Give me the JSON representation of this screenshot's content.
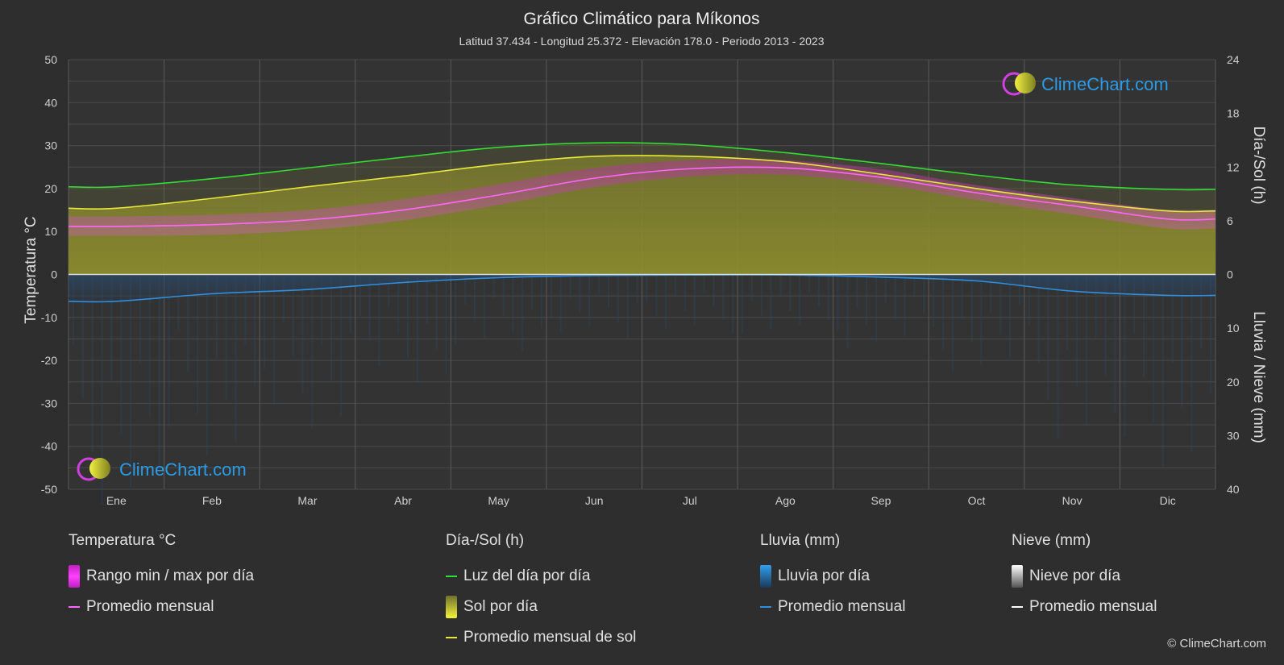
{
  "chart_data": {
    "type": "area",
    "title": "Gráfico Climático para Míkonos",
    "subtitle": "Latitud 37.434 - Longitud 25.372 - Elevación 178.0 - Periodo 2013 - 2023",
    "y_left_label": "Temperatura °C",
    "y_right_top_label": "Día-/Sol (h)",
    "y_right_bottom_label": "Lluvia / Nieve (mm)",
    "y_left_ticks": [
      "50",
      "40",
      "30",
      "20",
      "10",
      "0",
      "-10",
      "-20",
      "-30",
      "-40",
      "-50"
    ],
    "y_right_top_ticks": [
      "24",
      "18",
      "12",
      "6",
      "0"
    ],
    "y_right_bottom_ticks": [
      "10",
      "20",
      "30",
      "40"
    ],
    "ylim_temperature": [
      -50,
      50
    ],
    "ylim_daylight_hours": [
      0,
      24
    ],
    "ylim_precipitation_mm": [
      0,
      40
    ],
    "categories": [
      "Ene",
      "Feb",
      "Mar",
      "Abr",
      "May",
      "Jun",
      "Jul",
      "Ago",
      "Sep",
      "Oct",
      "Nov",
      "Dic"
    ],
    "series": [
      {
        "name": "Promedio mensual",
        "group": "temperature",
        "color": "#ff66ff",
        "values": [
          11.2,
          11.6,
          12.7,
          15.0,
          18.5,
          22.4,
          24.6,
          24.8,
          22.6,
          19.0,
          16.0,
          12.9
        ]
      },
      {
        "name": "Rango min / max por día",
        "group": "temperature_range",
        "color": "#e020c8",
        "min": [
          9.0,
          9.2,
          10.3,
          12.6,
          16.2,
          20.3,
          22.8,
          23.2,
          21.0,
          17.3,
          14.0,
          10.7
        ],
        "max": [
          13.5,
          13.9,
          15.0,
          17.5,
          21.0,
          24.8,
          26.6,
          26.6,
          24.5,
          20.8,
          17.8,
          15.0
        ]
      },
      {
        "name": "Luz del día por día",
        "group": "daylight",
        "color": "#33dd33",
        "values": [
          9.8,
          10.7,
          11.9,
          13.1,
          14.2,
          14.7,
          14.5,
          13.6,
          12.4,
          11.1,
          10.0,
          9.5
        ]
      },
      {
        "name": "Promedio mensual de sol",
        "group": "sunshine",
        "color": "#e8e83a",
        "values": [
          7.4,
          8.5,
          9.8,
          11.0,
          12.3,
          13.2,
          13.2,
          12.6,
          11.2,
          9.6,
          8.2,
          7.1
        ]
      },
      {
        "name": "Promedio mensual",
        "group": "rain",
        "color": "#2f8fdf",
        "values": [
          5.0,
          3.6,
          2.8,
          1.5,
          0.6,
          0.2,
          0.1,
          0.1,
          0.5,
          1.2,
          3.1,
          3.9
        ]
      },
      {
        "name": "Promedio mensual",
        "group": "snow",
        "color": "#ffffff",
        "values": [
          0,
          0,
          0,
          0,
          0,
          0,
          0,
          0,
          0,
          0,
          0,
          0
        ]
      }
    ],
    "grid": true,
    "watermark": "ClimeChart.com"
  },
  "legend": {
    "temperature": {
      "title": "Temperatura °C",
      "range": "Rango min / max por día",
      "avg": "Promedio mensual"
    },
    "sun": {
      "title": "Día-/Sol (h)",
      "daylight": "Luz del día por día",
      "sunshine": "Sol por día",
      "sun_avg": "Promedio mensual de sol"
    },
    "rain": {
      "title": "Lluvia (mm)",
      "daily": "Lluvia por día",
      "avg": "Promedio mensual"
    },
    "snow": {
      "title": "Nieve (mm)",
      "daily": "Nieve por día",
      "avg": "Promedio mensual"
    }
  },
  "colors": {
    "background": "#2e2e2e",
    "temperature_range": "#e020c8",
    "temperature_avg": "#ff66ff",
    "daylight": "#33dd33",
    "sunshine_fill": "#8c8c28",
    "sunshine_avg": "#e8e83a",
    "rain": "#2f8fdf",
    "snow": "#ffffff",
    "brand": "#2a9be8"
  },
  "copyright": "© ClimeChart.com"
}
